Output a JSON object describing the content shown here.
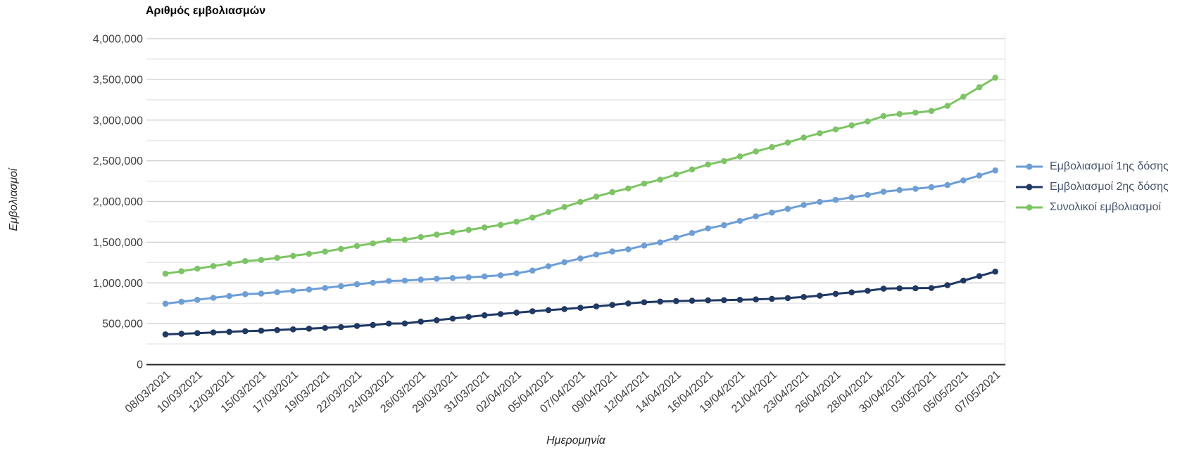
{
  "chart_data": {
    "type": "line",
    "title": "Αριθμός εμβολιασμών",
    "xlabel": "Ημερομηνία",
    "ylabel": "Εμβολιασμοί",
    "x_categories": [
      "08/03/2021",
      "09/03/2021",
      "10/03/2021",
      "11/03/2021",
      "12/03/2021",
      "13/03/2021",
      "15/03/2021",
      "16/03/2021",
      "17/03/2021",
      "18/03/2021",
      "19/03/2021",
      "20/03/2021",
      "22/03/2021",
      "23/03/2021",
      "24/03/2021",
      "25/03/2021",
      "26/03/2021",
      "27/03/2021",
      "29/03/2021",
      "30/03/2021",
      "31/03/2021",
      "01/04/2021",
      "02/04/2021",
      "03/04/2021",
      "05/04/2021",
      "06/04/2021",
      "07/04/2021",
      "08/04/2021",
      "09/04/2021",
      "10/04/2021",
      "12/04/2021",
      "13/04/2021",
      "14/04/2021",
      "15/04/2021",
      "16/04/2021",
      "17/04/2021",
      "19/04/2021",
      "20/04/2021",
      "21/04/2021",
      "22/04/2021",
      "23/04/2021",
      "24/04/2021",
      "26/04/2021",
      "27/04/2021",
      "28/04/2021",
      "29/04/2021",
      "30/04/2021",
      "01/05/2021",
      "03/05/2021",
      "04/05/2021",
      "05/05/2021",
      "06/05/2021",
      "07/05/2021"
    ],
    "x_tick_labels": [
      "08/03/2021",
      "10/03/2021",
      "12/03/2021",
      "15/03/2021",
      "17/03/2021",
      "19/03/2021",
      "22/03/2021",
      "24/03/2021",
      "26/03/2021",
      "29/03/2021",
      "31/03/2021",
      "02/04/2021",
      "05/04/2021",
      "07/04/2021",
      "09/04/2021",
      "12/04/2021",
      "14/04/2021",
      "16/04/2021",
      "19/04/2021",
      "21/04/2021",
      "23/04/2021",
      "26/04/2021",
      "28/04/2021",
      "30/04/2021",
      "03/05/2021",
      "05/05/2021",
      "07/05/2021"
    ],
    "x_tick_every": 2,
    "y_axis": {
      "min": 0,
      "max": 4000000,
      "major_step": 500000,
      "minor_step": 250000,
      "tick_labels": [
        "0",
        "500,000",
        "1,000,000",
        "1,500,000",
        "2,000,000",
        "2,500,000",
        "3,000,000",
        "3,500,000",
        "4,000,000"
      ]
    },
    "legend_position": "right",
    "grid": true,
    "series": [
      {
        "name": "Εμβολιασμοί 1ης δόσης",
        "color": "#6D9ED6",
        "values": [
          745000,
          768000,
          792000,
          816000,
          839000,
          861000,
          869000,
          886000,
          903000,
          919000,
          938000,
          960000,
          983000,
          1002000,
          1024000,
          1028000,
          1040000,
          1051000,
          1060000,
          1069000,
          1079000,
          1094000,
          1118000,
          1152000,
          1205000,
          1254000,
          1301000,
          1349000,
          1386000,
          1413000,
          1458000,
          1498000,
          1556000,
          1613000,
          1670000,
          1709000,
          1762000,
          1818000,
          1864000,
          1910000,
          1958000,
          1996000,
          2020000,
          2051000,
          2081000,
          2120000,
          2141000,
          2156000,
          2176000,
          2202000,
          2259000,
          2320000,
          2382000
        ]
      },
      {
        "name": "Εμβολιασμοί 2ης δόσης",
        "color": "#1F3864",
        "values": [
          368000,
          375000,
          383000,
          391000,
          399000,
          407000,
          413000,
          421000,
          429000,
          438000,
          447000,
          458000,
          471000,
          483000,
          500000,
          502000,
          524000,
          542000,
          562000,
          582000,
          602000,
          618000,
          634000,
          651000,
          665000,
          679000,
          694000,
          711000,
          729000,
          748000,
          762000,
          771000,
          777000,
          781000,
          785000,
          788000,
          792000,
          797000,
          804000,
          814000,
          827000,
          843000,
          866000,
          884000,
          903000,
          930000,
          934000,
          935000,
          937000,
          973000,
          1028000,
          1083000,
          1139000
        ]
      },
      {
        "name": "Συνολικοί εμβολιασμοί",
        "color": "#7DC464",
        "values": [
          1113000,
          1143000,
          1175000,
          1207000,
          1238000,
          1268000,
          1282000,
          1307000,
          1332000,
          1357000,
          1385000,
          1418000,
          1454000,
          1485000,
          1524000,
          1530000,
          1564000,
          1593000,
          1622000,
          1651000,
          1681000,
          1712000,
          1752000,
          1803000,
          1870000,
          1933000,
          1995000,
          2060000,
          2115000,
          2161000,
          2220000,
          2269000,
          2333000,
          2394000,
          2455000,
          2497000,
          2554000,
          2615000,
          2668000,
          2724000,
          2785000,
          2839000,
          2886000,
          2935000,
          2984000,
          3050000,
          3075000,
          3091000,
          3113000,
          3175000,
          3287000,
          3403000,
          3521000
        ]
      }
    ],
    "colors": {
      "legend_text": "#44546A",
      "tick_text": "#404040",
      "grid_major": "#CDCDCD",
      "grid_minor": "#E7E7E7",
      "axis_line": "#262626"
    }
  }
}
